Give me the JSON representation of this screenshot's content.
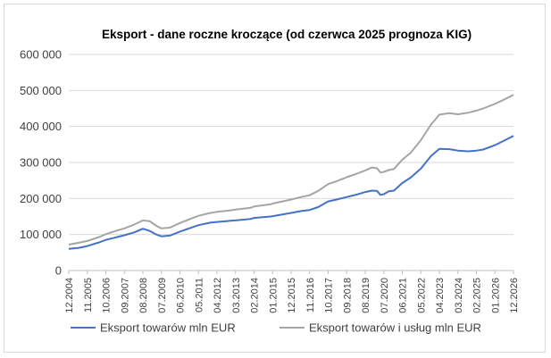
{
  "chart_data": {
    "type": "line",
    "title": "Eksport - dane roczne kroczące (od czerwca 2025 prognoza KIG)",
    "xlabel": "",
    "ylabel": "",
    "ylim": [
      0,
      600000
    ],
    "yticks": [
      0,
      100000,
      200000,
      300000,
      400000,
      500000,
      600000
    ],
    "ytick_labels": [
      "0",
      "100 000",
      "200 000",
      "300 000",
      "400 000",
      "500 000",
      "600 000"
    ],
    "xrange": [
      "2004-12",
      "2026-12"
    ],
    "xtick_labels": [
      "12.2004",
      "11.2005",
      "10.2006",
      "09.2007",
      "08.2008",
      "07.2009",
      "06.2010",
      "05.2011",
      "04.2012",
      "03.2013",
      "02.2014",
      "01.2015",
      "12.2015",
      "11.2016",
      "10.2017",
      "09.2018",
      "08.2019",
      "07.2020",
      "06.2021",
      "05.2022",
      "04.2023",
      "03.2024",
      "02.2025",
      "01.2026",
      "12.2026"
    ],
    "grid": true,
    "legend_position": "bottom",
    "series": [
      {
        "name": "Eksport towarów mln EUR",
        "color": "#4472c4",
        "points": [
          [
            "2004-12",
            60000
          ],
          [
            "2005-06",
            63000
          ],
          [
            "2005-11",
            68000
          ],
          [
            "2006-06",
            78000
          ],
          [
            "2006-10",
            85000
          ],
          [
            "2007-04",
            92000
          ],
          [
            "2007-09",
            98000
          ],
          [
            "2008-03",
            106000
          ],
          [
            "2008-08",
            116000
          ],
          [
            "2008-12",
            110000
          ],
          [
            "2009-04",
            100000
          ],
          [
            "2009-07",
            95000
          ],
          [
            "2009-12",
            97000
          ],
          [
            "2010-06",
            108000
          ],
          [
            "2010-12",
            118000
          ],
          [
            "2011-05",
            126000
          ],
          [
            "2011-12",
            133000
          ],
          [
            "2012-04",
            135000
          ],
          [
            "2012-12",
            138000
          ],
          [
            "2013-03",
            139000
          ],
          [
            "2013-12",
            143000
          ],
          [
            "2014-02",
            146000
          ],
          [
            "2014-12",
            150000
          ],
          [
            "2015-01",
            151000
          ],
          [
            "2015-12",
            160000
          ],
          [
            "2016-06",
            165000
          ],
          [
            "2016-11",
            168000
          ],
          [
            "2017-04",
            176000
          ],
          [
            "2017-10",
            192000
          ],
          [
            "2018-03",
            197000
          ],
          [
            "2018-09",
            204000
          ],
          [
            "2019-03",
            211000
          ],
          [
            "2019-08",
            218000
          ],
          [
            "2019-12",
            222000
          ],
          [
            "2020-03",
            221000
          ],
          [
            "2020-05",
            210000
          ],
          [
            "2020-07",
            212000
          ],
          [
            "2020-10",
            220000
          ],
          [
            "2021-01",
            222000
          ],
          [
            "2021-06",
            243000
          ],
          [
            "2021-11",
            258000
          ],
          [
            "2022-05",
            283000
          ],
          [
            "2022-11",
            318000
          ],
          [
            "2023-04",
            338000
          ],
          [
            "2023-10",
            337000
          ],
          [
            "2024-03",
            333000
          ],
          [
            "2024-09",
            331000
          ],
          [
            "2025-02",
            333000
          ],
          [
            "2025-06",
            336000
          ],
          [
            "2026-01",
            348000
          ],
          [
            "2026-07",
            362000
          ],
          [
            "2026-12",
            374000
          ]
        ]
      },
      {
        "name": "Eksport towarów i usług mln EUR",
        "color": "#a5a5a5",
        "points": [
          [
            "2004-12",
            72000
          ],
          [
            "2005-06",
            77000
          ],
          [
            "2005-11",
            82000
          ],
          [
            "2006-06",
            93000
          ],
          [
            "2006-10",
            101000
          ],
          [
            "2007-04",
            110000
          ],
          [
            "2007-09",
            117000
          ],
          [
            "2008-03",
            128000
          ],
          [
            "2008-08",
            139000
          ],
          [
            "2008-12",
            137000
          ],
          [
            "2009-04",
            124000
          ],
          [
            "2009-07",
            117000
          ],
          [
            "2009-12",
            119000
          ],
          [
            "2010-06",
            132000
          ],
          [
            "2010-12",
            143000
          ],
          [
            "2011-05",
            152000
          ],
          [
            "2011-12",
            160000
          ],
          [
            "2012-04",
            163000
          ],
          [
            "2012-12",
            167000
          ],
          [
            "2013-03",
            169000
          ],
          [
            "2013-12",
            174000
          ],
          [
            "2014-02",
            178000
          ],
          [
            "2014-12",
            184000
          ],
          [
            "2015-01",
            186000
          ],
          [
            "2015-12",
            197000
          ],
          [
            "2016-06",
            204000
          ],
          [
            "2016-11",
            209000
          ],
          [
            "2017-04",
            221000
          ],
          [
            "2017-10",
            240000
          ],
          [
            "2018-03",
            248000
          ],
          [
            "2018-09",
            259000
          ],
          [
            "2019-03",
            269000
          ],
          [
            "2019-08",
            278000
          ],
          [
            "2019-12",
            286000
          ],
          [
            "2020-03",
            284000
          ],
          [
            "2020-05",
            272000
          ],
          [
            "2020-07",
            274000
          ],
          [
            "2020-10",
            279000
          ],
          [
            "2021-01",
            282000
          ],
          [
            "2021-06",
            308000
          ],
          [
            "2021-11",
            327000
          ],
          [
            "2022-05",
            362000
          ],
          [
            "2022-11",
            405000
          ],
          [
            "2023-04",
            433000
          ],
          [
            "2023-10",
            437000
          ],
          [
            "2024-03",
            434000
          ],
          [
            "2024-09",
            438000
          ],
          [
            "2025-02",
            444000
          ],
          [
            "2025-06",
            450000
          ],
          [
            "2026-01",
            463000
          ],
          [
            "2026-07",
            476000
          ],
          [
            "2026-12",
            488000
          ]
        ]
      }
    ]
  }
}
